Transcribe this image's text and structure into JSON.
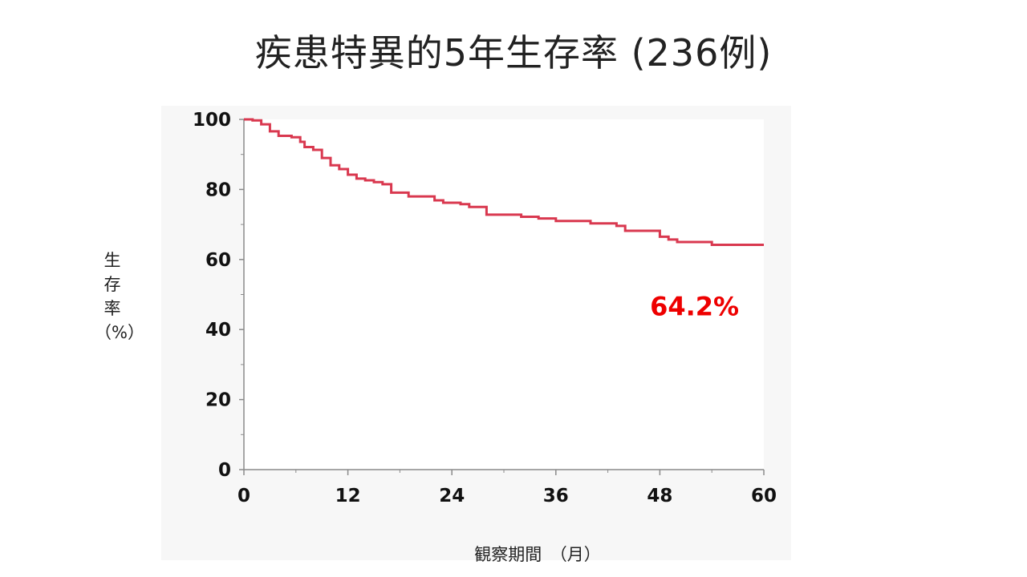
{
  "slide": {
    "title": "疾患特異的5年生存率 (236例)"
  },
  "chart_data": {
    "type": "line",
    "subtype": "kaplan-meier-step",
    "title": "疾患特異的5年生存率 (236例)",
    "xlabel": "観察期間　（月）",
    "ylabel": [
      "生",
      "存",
      "率",
      "（%）"
    ],
    "xlim": [
      0,
      60
    ],
    "ylim": [
      0,
      100
    ],
    "x_ticks": [
      0,
      12,
      24,
      36,
      48,
      60
    ],
    "y_ticks": [
      0,
      20,
      40,
      60,
      80,
      100
    ],
    "grid": false,
    "annotation": {
      "text": "64.2%",
      "color": "#ee0000"
    },
    "series": [
      {
        "color": "#d9384f",
        "x": [
          0,
          1,
          2,
          3,
          4,
          5.5,
          6.5,
          7,
          8,
          9,
          10,
          11,
          12,
          13,
          14,
          15,
          16,
          17,
          19,
          22,
          23,
          25,
          26,
          28,
          32,
          34,
          36,
          40,
          43,
          44,
          48,
          49,
          50,
          54,
          60
        ],
        "y": [
          100,
          99.7,
          98.6,
          96.6,
          95.3,
          94.9,
          93.6,
          92.1,
          91.3,
          89.0,
          86.9,
          85.8,
          84.2,
          83.1,
          82.6,
          82.1,
          81.5,
          79.1,
          78.0,
          76.9,
          76.2,
          75.8,
          75.0,
          72.8,
          72.2,
          71.7,
          71.0,
          70.3,
          69.6,
          68.2,
          66.5,
          65.7,
          65.0,
          64.2,
          64.2
        ]
      }
    ]
  }
}
